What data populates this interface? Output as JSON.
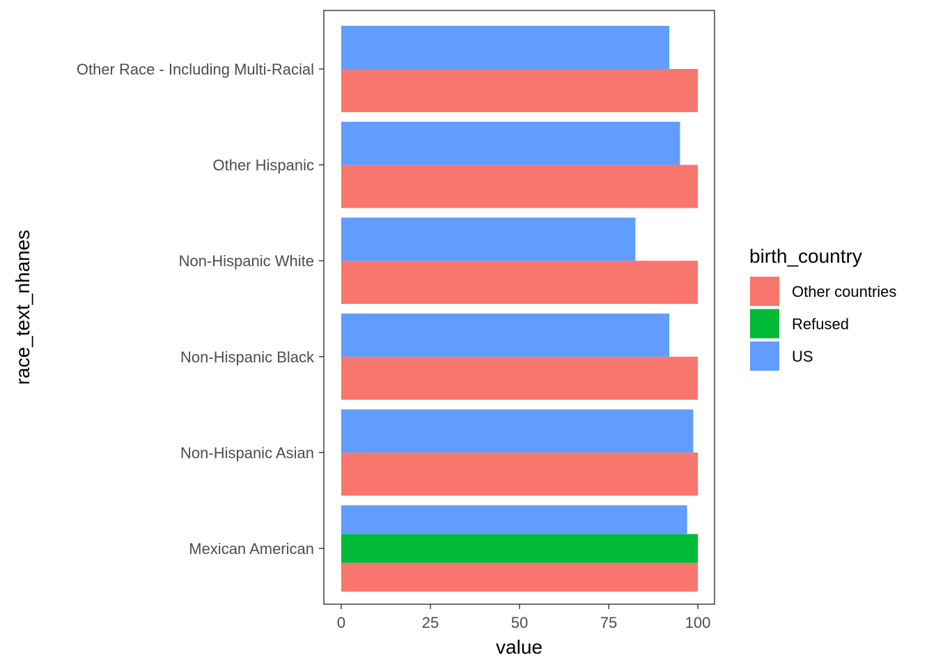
{
  "chart_data": {
    "type": "bar",
    "orientation": "horizontal",
    "position": "dodge",
    "title": "",
    "xlabel": "value",
    "ylabel": "race_text_nhanes",
    "xlim": [
      0,
      105
    ],
    "xticks": [
      0,
      25,
      50,
      75,
      100
    ],
    "grid": false,
    "legend_position": "right",
    "legend_title": "birth_country",
    "categories": [
      "Mexican American",
      "Non-Hispanic Asian",
      "Non-Hispanic Black",
      "Non-Hispanic White",
      "Other Hispanic",
      "Other Race - Including Multi-Racial"
    ],
    "series": [
      {
        "name": "Other countries",
        "color": "#F8766D",
        "values": [
          100,
          100,
          100,
          100,
          100,
          100
        ]
      },
      {
        "name": "Refused",
        "color": "#00BA38",
        "values": [
          100,
          null,
          null,
          null,
          null,
          null
        ]
      },
      {
        "name": "US",
        "color": "#619CFF",
        "values": [
          97,
          98.7,
          92,
          82.5,
          95,
          92
        ]
      }
    ]
  }
}
